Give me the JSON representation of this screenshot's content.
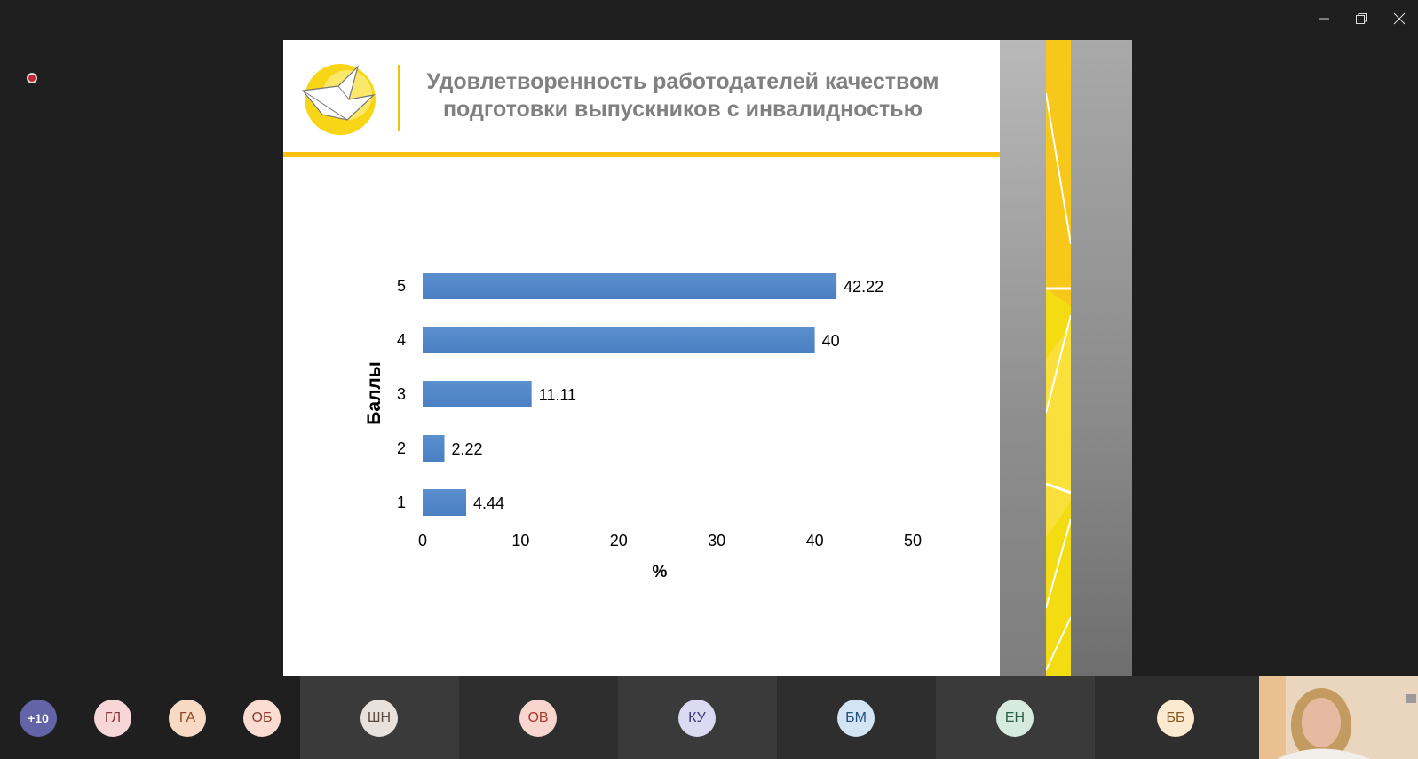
{
  "window": {
    "minimize_icon": "minimize-icon",
    "restore_icon": "restore-icon",
    "close_icon": "close-icon"
  },
  "recording": {
    "icon": "record-icon",
    "color": "#c0283a"
  },
  "slide": {
    "title_line1": "Удовлетворенность работодателей качеством",
    "title_line2": "подготовки выпускников с инвалидностью",
    "accent_color": "#f9c10d"
  },
  "chart_data": {
    "type": "bar",
    "orientation": "horizontal",
    "categories": [
      "5",
      "4",
      "3",
      "2",
      "1"
    ],
    "values": [
      42.22,
      40,
      11.11,
      2.22,
      4.44
    ],
    "data_labels": [
      "42.22",
      "40",
      "11.11",
      "2.22",
      "4.44"
    ],
    "xlabel": "%",
    "ylabel": "Баллы",
    "xlim": [
      0,
      50
    ],
    "x_ticks": [
      "0",
      "10",
      "20",
      "30",
      "40",
      "50"
    ],
    "grid": false,
    "bar_color": "#4a7fc1"
  },
  "participants": {
    "more": {
      "label": "+10",
      "bg": "#6264a7",
      "fg": "#ffffff"
    },
    "tiles": [
      {
        "initials": "ГЛ",
        "bg": "#f6d6d6",
        "fg": "#8a3a3a"
      },
      {
        "initials": "ГА",
        "bg": "#f7d9c4",
        "fg": "#8b4a26"
      },
      {
        "initials": "ОБ",
        "bg": "#fbdcd3",
        "fg": "#8e3d2f"
      },
      {
        "initials": "ШН",
        "bg": "#e8e1dc",
        "fg": "#5b4a40"
      },
      {
        "initials": "ОВ",
        "bg": "#f9d5cf",
        "fg": "#a33a2b"
      },
      {
        "initials": "КУ",
        "bg": "#dcdaf2",
        "fg": "#3d3a7a"
      },
      {
        "initials": "БМ",
        "bg": "#d3e4f4",
        "fg": "#1f4f80"
      },
      {
        "initials": "ЕН",
        "bg": "#d6eadf",
        "fg": "#2e6046"
      },
      {
        "initials": "ББ",
        "bg": "#fbe9d0",
        "fg": "#8b5a1f"
      }
    ]
  }
}
